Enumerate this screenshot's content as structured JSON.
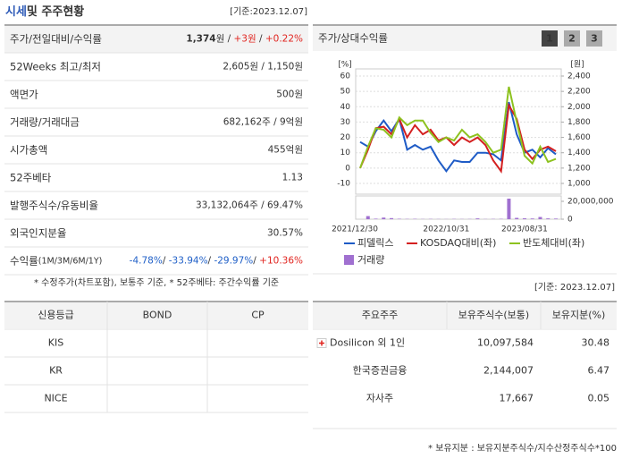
{
  "header": {
    "title_highlight": "시세",
    "title_rest": "및 주주현황",
    "date": "[기준:2023.12.07]"
  },
  "summary": {
    "rows": [
      {
        "label": "주가/전일대비/수익률",
        "parts": [
          {
            "text": "1,374",
            "bold": true
          },
          {
            "text": "원 / "
          },
          {
            "text": "+3원",
            "color": "#e1241f"
          },
          {
            "text": " / "
          },
          {
            "text": "+0.22%",
            "color": "#e1241f"
          }
        ]
      },
      {
        "label": "52Weeks 최고/최저",
        "parts": [
          {
            "text": "2,605원 / 1,150원"
          }
        ]
      },
      {
        "label": "액면가",
        "parts": [
          {
            "text": "500원"
          }
        ]
      },
      {
        "label": "거래량/거래대금",
        "parts": [
          {
            "text": "682,162주 / 9억원"
          }
        ]
      },
      {
        "label": "시가총액",
        "parts": [
          {
            "text": "455억원"
          }
        ]
      },
      {
        "label": "52주베타",
        "parts": [
          {
            "text": "1.13"
          }
        ]
      },
      {
        "label": "발행주식수/유동비율",
        "parts": [
          {
            "text": "33,132,064주 / 69.47%"
          }
        ]
      },
      {
        "label": "외국인지분율",
        "parts": [
          {
            "text": "30.57%"
          }
        ]
      },
      {
        "label": "수익률",
        "sublabel": "(1M/3M/6M/1Y)",
        "parts": [
          {
            "text": "-4.78%",
            "color": "#1f5fc7"
          },
          {
            "text": "/ "
          },
          {
            "text": "-33.94%",
            "color": "#1f5fc7"
          },
          {
            "text": "/ "
          },
          {
            "text": "-29.97%",
            "color": "#1f5fc7"
          },
          {
            "text": "/ "
          },
          {
            "text": "+10.36%",
            "color": "#e1241f"
          }
        ]
      }
    ],
    "note": "* 수정주가(차트포함), 보통주 기준, * 52주베타: 주간수익률 기준"
  },
  "chart_data": {
    "type": "line",
    "title": "주가/상대수익률",
    "tabs": [
      "1",
      "2",
      "3"
    ],
    "active_tab": 0,
    "y_unit": "[%]",
    "y2_unit": "[원]",
    "ylim": [
      -10,
      60
    ],
    "yticks": [
      -10,
      0,
      10,
      20,
      30,
      40,
      50,
      60
    ],
    "y2lim": [
      1000,
      2400
    ],
    "y2ticks": [
      {
        "value": 1000,
        "label": "1,000"
      },
      {
        "value": 1200,
        "label": "1,200"
      },
      {
        "value": 1400,
        "label": "1,400"
      },
      {
        "value": 1600,
        "label": "1,600"
      },
      {
        "value": 1800,
        "label": "1,800"
      },
      {
        "value": 2000,
        "label": "2,000"
      },
      {
        "value": 2200,
        "label": "2,200"
      },
      {
        "value": 2400,
        "label": "2,400"
      }
    ],
    "grid": true,
    "categories": [
      "2021/12/30",
      null,
      null,
      null,
      null,
      null,
      null,
      null,
      null,
      null,
      null,
      "2022/10/31",
      null,
      null,
      null,
      null,
      null,
      null,
      null,
      null,
      null,
      "2023/08/31",
      null,
      null,
      null,
      null
    ],
    "series": [
      {
        "name": "피델릭스",
        "color": "#1e5bc6",
        "values": [
          17,
          14,
          24,
          31,
          24,
          32,
          12,
          15,
          12,
          14,
          5,
          -2,
          5,
          4,
          4,
          10,
          10,
          9,
          5,
          43,
          22,
          10,
          12,
          7,
          13,
          9
        ]
      },
      {
        "name": "KOSDAQ대비(좌)",
        "color": "#d42020",
        "values": [
          0,
          12,
          26,
          27,
          22,
          32,
          20,
          28,
          22,
          25,
          18,
          20,
          15,
          20,
          17,
          20,
          15,
          5,
          -2,
          41,
          32,
          12,
          6,
          12,
          14,
          11
        ]
      },
      {
        "name": "반도체대비(좌)",
        "color": "#8dc21f",
        "values": [
          0,
          14,
          26,
          25,
          20,
          33,
          28,
          31,
          31,
          23,
          17,
          20,
          18,
          25,
          20,
          22,
          17,
          10,
          12,
          53,
          30,
          8,
          3,
          14,
          4,
          6
        ]
      }
    ],
    "volume": {
      "name": "거래량",
      "color": "#a070d0",
      "ylim": [
        0,
        26000000
      ],
      "yticks": [
        0,
        {
          "value": 20000000,
          "label": "20,000,000"
        }
      ],
      "values": [
        0,
        3500000,
        600000,
        1800000,
        1200000,
        500000,
        300000,
        400000,
        200000,
        300000,
        200000,
        150000,
        300000,
        200000,
        250000,
        900000,
        200000,
        300000,
        400000,
        23000000,
        1500000,
        1000000,
        800000,
        2500000,
        900000,
        700000
      ]
    }
  },
  "ratings": {
    "date": "[기준: 2023.12.07]",
    "headers": [
      "신용등급",
      "BOND",
      "CP"
    ],
    "rows": [
      [
        "KIS"
      ],
      [
        "KR"
      ],
      [
        "NICE"
      ]
    ]
  },
  "holders": {
    "headers": [
      "주요주주",
      "보유주식수(보통)",
      "보유지분(%)"
    ],
    "rows": [
      [
        "Dosilicon 외 1인",
        "10,097,584",
        "30.48"
      ],
      [
        "한국증권금융",
        "2,144,007",
        "6.47"
      ],
      [
        "자사주",
        "17,667",
        "0.05"
      ]
    ],
    "note": "* 보유지분 : 보유지분주식수/지수산정주식수*100"
  }
}
